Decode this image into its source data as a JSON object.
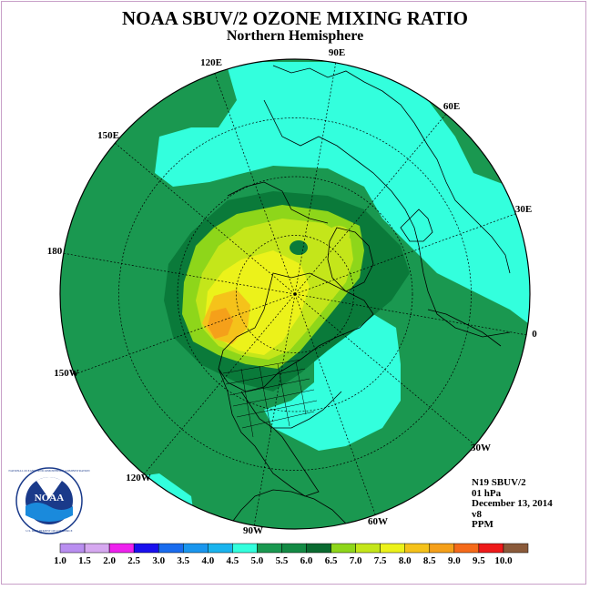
{
  "header": {
    "title": "NOAA SBUV/2 OZONE MIXING RATIO",
    "subtitle": "Northern Hemisphere"
  },
  "map": {
    "longitude_labels": [
      "90E",
      "60E",
      "30E",
      "0",
      "30W",
      "60W",
      "90W",
      "120W",
      "150W",
      "180",
      "150E",
      "120E"
    ],
    "colors": {
      "c4_5": "#33ffdd",
      "c5_0": "#1a9850",
      "c5_5": "#0a7a3a",
      "c6_0": "#8ed61a",
      "c6_5": "#c4e61a",
      "c7_0": "#ecf21a",
      "c7_5": "#f5c21a",
      "c8_0": "#f5a01a"
    }
  },
  "info": {
    "satellite": "N19 SBUV/2",
    "level": "01 hPa",
    "date": "December 13, 2014",
    "version": "v8",
    "units": "PPM"
  },
  "logo": {
    "text": "NOAA",
    "ring_top": "NATIONAL OCEANIC AND ATMOSPHERIC ADMINISTRATION",
    "ring_bottom": "U.S. DEPARTMENT OF COMMERCE"
  },
  "colorbar": {
    "labels": [
      "1.0",
      "1.5",
      "2.0",
      "2.5",
      "3.0",
      "3.5",
      "4.0",
      "4.5",
      "5.0",
      "5.5",
      "6.0",
      "6.5",
      "7.0",
      "7.5",
      "8.0",
      "8.5",
      "9.0",
      "9.5",
      "10.0"
    ],
    "colors": [
      "#b98ef0",
      "#d6a8f0",
      "#ee22ee",
      "#1a10ee",
      "#1a6cee",
      "#1a96ee",
      "#1ab4ee",
      "#33ffdd",
      "#1a9850",
      "#138a44",
      "#0a6a30",
      "#8ed61a",
      "#c4e61a",
      "#ecf21a",
      "#f5c21a",
      "#f5a01a",
      "#f56a1a",
      "#ee1a1a",
      "#8a5a3a"
    ]
  }
}
